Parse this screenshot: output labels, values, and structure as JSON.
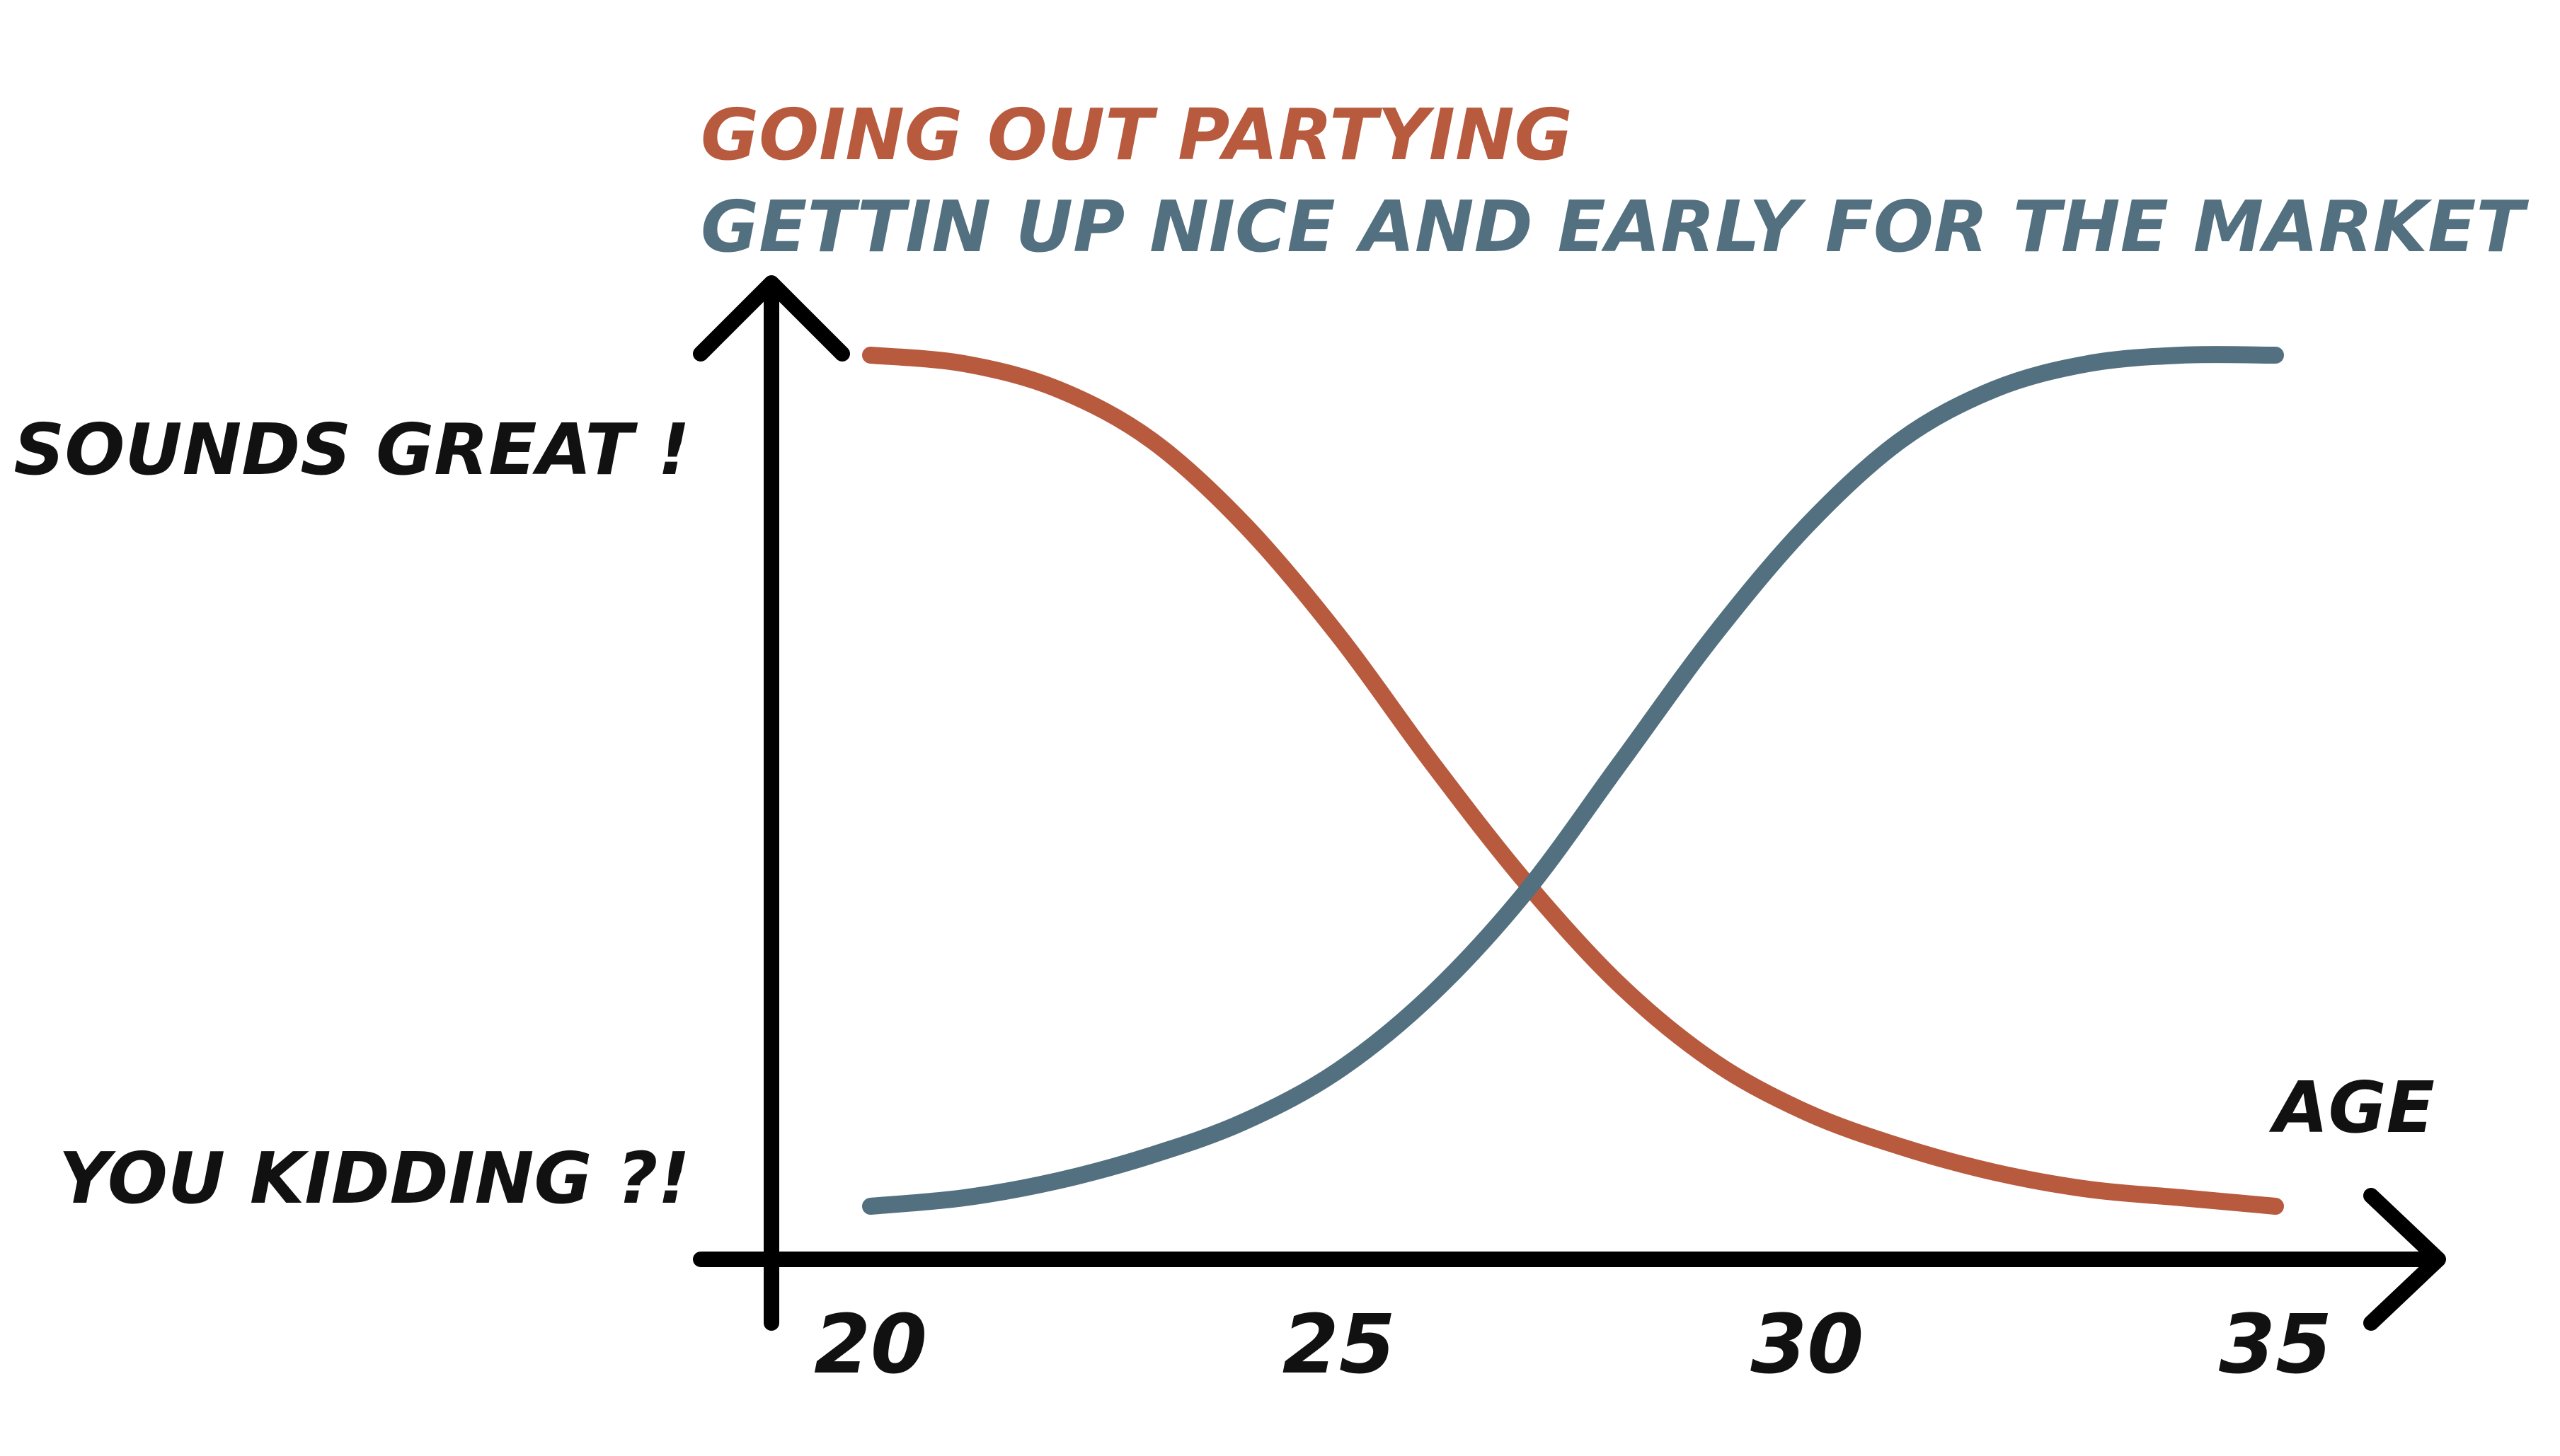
{
  "chart_data": {
    "type": "line",
    "title": "",
    "xlabel": "AGE",
    "ylabel": "",
    "x_ticks": [
      20,
      25,
      30,
      35
    ],
    "xlim": [
      20,
      35
    ],
    "ylim": [
      0,
      1
    ],
    "y_tick_labels": [
      {
        "value": 1,
        "label": "SOUNDS GREAT !"
      },
      {
        "value": 0,
        "label": "YOU KIDDING ?!"
      }
    ],
    "grid": false,
    "legend_position": "top-left",
    "series": [
      {
        "name": "GOING OUT PARTYING",
        "color": "#b85a3e",
        "x": [
          20,
          21,
          22,
          23,
          24,
          25,
          26,
          27,
          28,
          29,
          30,
          31,
          32,
          33,
          34,
          35
        ],
        "y": [
          1.0,
          0.99,
          0.96,
          0.9,
          0.8,
          0.67,
          0.52,
          0.38,
          0.26,
          0.17,
          0.11,
          0.07,
          0.04,
          0.02,
          0.01,
          0.0
        ]
      },
      {
        "name": "GETTIN UP NICE AND EARLY FOR THE MARKET",
        "color": "#52707f",
        "x": [
          20,
          21,
          22,
          23,
          24,
          25,
          26,
          27,
          28,
          29,
          30,
          31,
          32,
          33,
          34,
          35
        ],
        "y": [
          0.0,
          0.01,
          0.03,
          0.06,
          0.1,
          0.16,
          0.25,
          0.37,
          0.52,
          0.67,
          0.8,
          0.9,
          0.96,
          0.99,
          1.0,
          1.0
        ]
      }
    ]
  }
}
